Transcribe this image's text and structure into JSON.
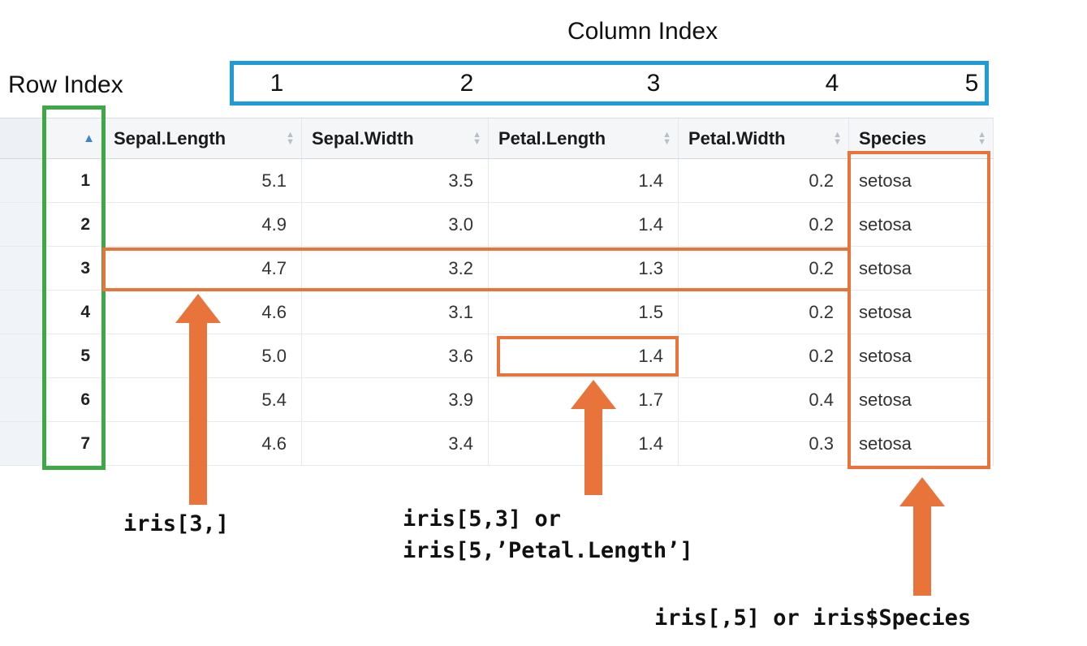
{
  "annotations": {
    "column_index_label": "Column Index",
    "row_index_label": "Row Index",
    "column_indices": [
      "1",
      "2",
      "3",
      "4",
      "5"
    ],
    "code_labels": {
      "row_select": "iris[3,]",
      "cell_select_line1": "iris[5,3] or",
      "cell_select_line2": "iris[5,’Petal.Length’]",
      "column_select": "iris[,5] or iris$Species"
    }
  },
  "icons": {
    "sort_active_ascending": "▲",
    "sort_up": "▲",
    "sort_down": "▼"
  },
  "table": {
    "columns": [
      "Sepal.Length",
      "Sepal.Width",
      "Petal.Length",
      "Petal.Width",
      "Species"
    ],
    "rows": [
      {
        "index": "1",
        "values": [
          "5.1",
          "3.5",
          "1.4",
          "0.2",
          "setosa"
        ]
      },
      {
        "index": "2",
        "values": [
          "4.9",
          "3.0",
          "1.4",
          "0.2",
          "setosa"
        ]
      },
      {
        "index": "3",
        "values": [
          "4.7",
          "3.2",
          "1.3",
          "0.2",
          "setosa"
        ]
      },
      {
        "index": "4",
        "values": [
          "4.6",
          "3.1",
          "1.5",
          "0.2",
          "setosa"
        ]
      },
      {
        "index": "5",
        "values": [
          "5.0",
          "3.6",
          "1.4",
          "0.2",
          "setosa"
        ]
      },
      {
        "index": "6",
        "values": [
          "5.4",
          "3.9",
          "1.7",
          "0.4",
          "setosa"
        ]
      },
      {
        "index": "7",
        "values": [
          "4.6",
          "3.4",
          "1.4",
          "0.3",
          "setosa"
        ]
      }
    ]
  },
  "colors": {
    "column_index_box": "#1f9cd8",
    "row_index_box": "#3fa846",
    "highlight": "#e8743c"
  }
}
